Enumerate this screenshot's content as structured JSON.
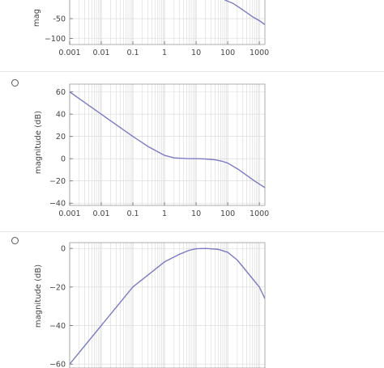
{
  "options": [
    {
      "ylabel": "mag",
      "ytick_labels": [
        "-50",
        "−100"
      ],
      "xtick_labels": [
        "0.001",
        "0.01",
        "0.1",
        "1",
        "10",
        "100",
        "1000"
      ]
    },
    {
      "ylabel": "magnitude (dB)",
      "ytick_labels": [
        "60",
        "40",
        "20",
        "0",
        "−20",
        "−40"
      ],
      "xtick_labels": [
        "0.001",
        "0.01",
        "0.1",
        "1",
        "10",
        "100",
        "1000"
      ]
    },
    {
      "ylabel": "magnitude (dB)",
      "ytick_labels": [
        "0",
        "−20",
        "−40",
        "−60"
      ],
      "xtick_labels": []
    }
  ],
  "chart_data": [
    {
      "type": "line",
      "xscale": "log",
      "xlim": [
        0.001,
        1500
      ],
      "ylim": [
        -115,
        5
      ],
      "series": [
        {
          "x": [
            80,
            150,
            300,
            600,
            1000,
            1500
          ],
          "y": [
            -3,
            -12,
            -28,
            -45,
            -55,
            -65
          ]
        }
      ]
    },
    {
      "type": "line",
      "xscale": "log",
      "xlim": [
        0.001,
        1500
      ],
      "ylim": [
        -42,
        67
      ],
      "series": [
        {
          "x": [
            0.001,
            0.01,
            0.1,
            0.3,
            1,
            2,
            5,
            10,
            20,
            40,
            70,
            100,
            200,
            400,
            700,
            1500
          ],
          "y": [
            60,
            40,
            20,
            11,
            3,
            0.7,
            0.1,
            0,
            -0.3,
            -1,
            -2.5,
            -4,
            -9,
            -15,
            -20,
            -26
          ]
        }
      ]
    },
    {
      "type": "line",
      "xscale": "log",
      "xlim": [
        0.001,
        1500
      ],
      "ylim": [
        -62,
        3
      ],
      "series": [
        {
          "x": [
            0.001,
            0.01,
            0.1,
            1,
            3,
            6,
            10,
            20,
            50,
            100,
            200,
            500,
            1000,
            1500
          ],
          "y": [
            -60,
            -40,
            -20,
            -7,
            -3,
            -1,
            -0.2,
            0,
            -0.5,
            -2,
            -6,
            -14,
            -20,
            -26
          ]
        }
      ]
    }
  ],
  "colors": {
    "curve": "#7b7bc4",
    "grid": "#d8d8d8",
    "frame": "#999999"
  }
}
